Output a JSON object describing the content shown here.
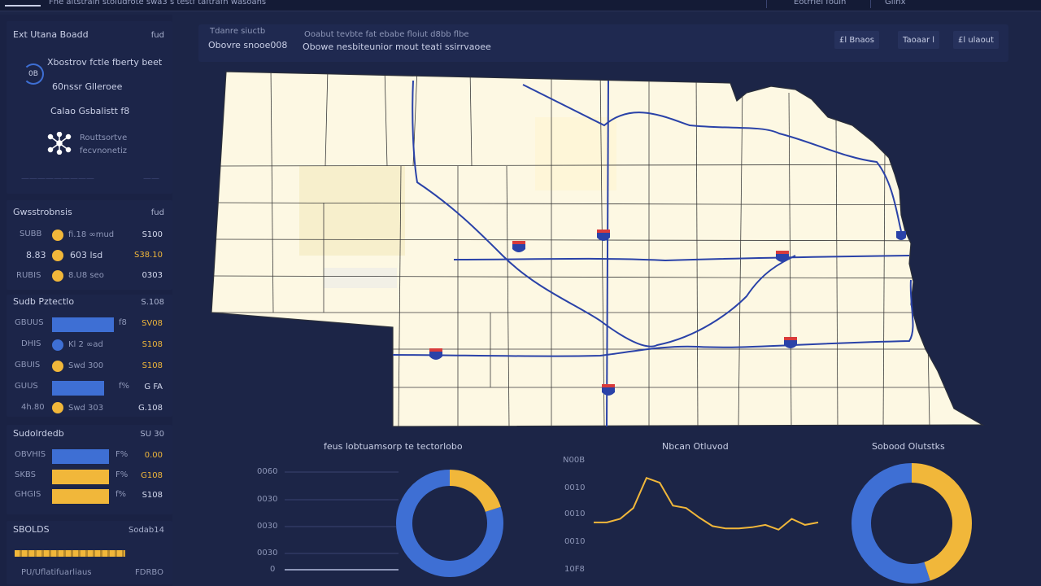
{
  "topbar": {
    "title": "Fhe altstrain stoiudrote swa3 s testf taftrafn wasoans",
    "user": "Eotrriel fouin",
    "menu": "Gllnx"
  },
  "sidebar": {
    "overview": {
      "heading": "Ext Utana Boadd",
      "heading_right": "fud",
      "ring_label": "0B",
      "line1": "Xbostrov fctle fberty beet",
      "line2": "60nssr Glleroee",
      "line3": "Calao Gsbalistt f8",
      "line4a": "Routtsortve",
      "line4b": "fecvnonetiz",
      "footer_left": "—————————",
      "footer_right": "——"
    },
    "stats": {
      "heading": "Gwsstrobnsis",
      "heading_right": "fud",
      "rows": [
        {
          "label": "SUBB",
          "mid": "fi.18 ∞mud",
          "value": "S100"
        },
        {
          "label": "8.83",
          "mid": "603 lsd",
          "value": "S38.10"
        },
        {
          "label": "RUBIS",
          "mid": "8.U8 seo",
          "value": "0303"
        }
      ]
    },
    "breakdown": {
      "heading": "Sudb Pztectlo",
      "heading_right": "S.108",
      "rows": [
        {
          "label": "GBUUS",
          "mid": "f8",
          "value": "SV08"
        },
        {
          "label": "DHIS",
          "mid": "Kl 2 ∞ad",
          "value": "S108"
        },
        {
          "label": "GBUIS",
          "mid": "Swd 300",
          "value": "S108"
        },
        {
          "label": "GUUS",
          "mid": "f%",
          "value": "G FA"
        },
        {
          "label": "4h.80",
          "mid": "Swd 303",
          "value": "G.108"
        }
      ]
    },
    "categories": {
      "heading": "Sudolrdedb",
      "heading_right": "SU 30",
      "rows": [
        {
          "label": "OBVHIS",
          "mid": "F%",
          "value": "0.00"
        },
        {
          "label": "SKBS",
          "mid": "F%",
          "value": "G108"
        },
        {
          "label": "GHGIS",
          "mid": "f%",
          "value": "S108"
        }
      ]
    },
    "footer": {
      "heading": "SBOLDS",
      "heading_right": "Sodab14",
      "line": "PU/Uflatifuarliaus",
      "line_right": "FDRBO"
    }
  },
  "header": {
    "left_top": "Tdanre siuctb",
    "left_bottom": "Obovre snooe008",
    "center_top": "Ooabut tevbte fat ebabe floiut d8bb flbe",
    "center_bottom": "Obowe nesbiteunior  mout teati ssirrvaoee",
    "tags": [
      "£l Bnaos",
      "Taoaar l",
      "£l ulaout"
    ]
  },
  "charts": {
    "left_title": "feus lobtuamsorp te tectorlobo",
    "center_title": "Nbcan Otluvod",
    "right_title": "Sobood Olutstks",
    "left_ticks": [
      "0060",
      "0030",
      "0030",
      "0030",
      "0"
    ],
    "center_ticks": [
      "N00B",
      "0010",
      "0010",
      "0010",
      "10F8"
    ],
    "left_donut": {
      "blue": 80,
      "orange": 20
    },
    "right_donut": {
      "blue": 55,
      "orange": 45
    },
    "line_series": [
      46,
      46,
      49,
      58,
      83,
      79,
      60,
      58,
      50,
      43,
      41,
      41,
      42,
      44,
      40,
      49,
      44,
      46
    ]
  },
  "colors": {
    "background": "#1c2547",
    "map_fill": "#fdf8e3",
    "road": "#2a42a8",
    "blue": "#3e6fd4",
    "orange": "#f1b73a"
  },
  "icons": {
    "network": "network-icon",
    "interstate": "interstate-shield-icon"
  }
}
